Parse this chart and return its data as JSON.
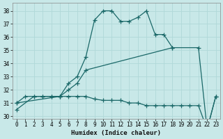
{
  "xlabel": "Humidex (Indice chaleur)",
  "xlim": [
    -0.5,
    23.5
  ],
  "ylim": [
    29.8,
    38.6
  ],
  "yticks": [
    30,
    31,
    32,
    33,
    34,
    35,
    36,
    37,
    38
  ],
  "xticks": [
    0,
    1,
    2,
    3,
    4,
    5,
    6,
    7,
    8,
    9,
    10,
    11,
    12,
    13,
    14,
    15,
    16,
    17,
    18,
    19,
    20,
    21,
    22,
    23
  ],
  "background_color": "#c8e8e8",
  "grid_color": "#b0d8d8",
  "line_color": "#1a6868",
  "series": [
    {
      "x": [
        0,
        2,
        3,
        4,
        5,
        6,
        7,
        8,
        9,
        10,
        11,
        12,
        13,
        14,
        15,
        16,
        17,
        18,
        21,
        22,
        23
      ],
      "y": [
        30.5,
        31.5,
        31.5,
        31.5,
        31.5,
        32.5,
        33.0,
        34.5,
        37.3,
        38.0,
        38.0,
        37.2,
        37.2,
        37.5,
        38.0,
        36.2,
        36.2,
        35.2,
        35.2,
        29.0,
        31.5
      ]
    },
    {
      "x": [
        0,
        5,
        6,
        7,
        8,
        18
      ],
      "y": [
        31.0,
        31.5,
        32.0,
        32.5,
        33.5,
        35.2
      ]
    },
    {
      "x": [
        0,
        1,
        2,
        3,
        4,
        5,
        6,
        7,
        8,
        9,
        10,
        11,
        12,
        13,
        14,
        15,
        16,
        17,
        18,
        19,
        20,
        21,
        22,
        23
      ],
      "y": [
        31.0,
        31.5,
        31.5,
        31.5,
        31.5,
        31.5,
        31.5,
        31.5,
        31.5,
        31.3,
        31.2,
        31.2,
        31.2,
        31.0,
        31.0,
        30.8,
        30.8,
        30.8,
        30.8,
        30.8,
        30.8,
        30.8,
        29.0,
        31.5
      ]
    }
  ],
  "linewidth": 0.9,
  "marker": "+",
  "marker_size": 4
}
